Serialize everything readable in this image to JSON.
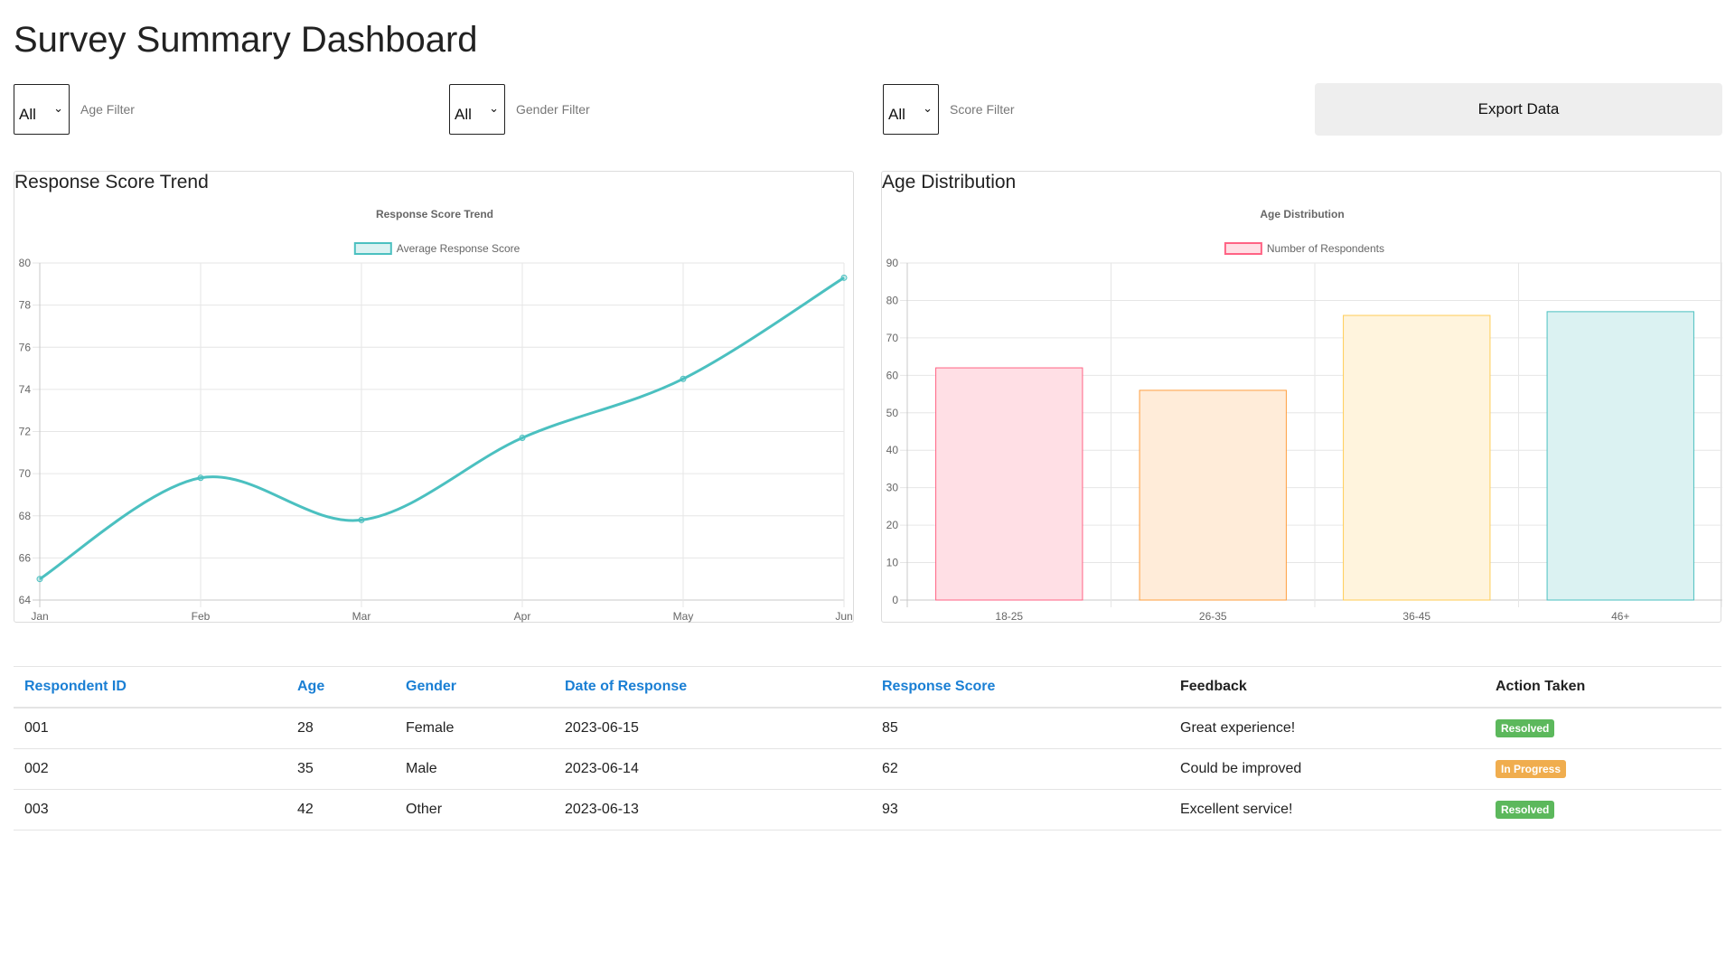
{
  "page": {
    "title": "Survey Summary Dashboard"
  },
  "filters": {
    "age": {
      "value": "All",
      "label": "Age Filter"
    },
    "gender": {
      "value": "All",
      "label": "Gender Filter"
    },
    "score": {
      "value": "All",
      "label": "Score Filter"
    },
    "export_label": "Export Data"
  },
  "charts": {
    "trend": {
      "heading": "Response Score Trend"
    },
    "age": {
      "heading": "Age Distribution"
    }
  },
  "chart_data": [
    {
      "type": "line",
      "title": "Response Score Trend",
      "categories": [
        "Jan",
        "Feb",
        "Mar",
        "Apr",
        "May",
        "Jun"
      ],
      "series": [
        {
          "name": "Average Response Score",
          "values": [
            65,
            69.8,
            67.8,
            71.7,
            74.5,
            79.3
          ],
          "color": "#4bc0c0"
        }
      ],
      "ylim": [
        64,
        80
      ],
      "yticks": [
        64,
        66,
        68,
        70,
        72,
        74,
        76,
        78,
        80
      ],
      "grid": true,
      "legend": "top"
    },
    {
      "type": "bar",
      "title": "Age Distribution",
      "categories": [
        "18-25",
        "26-35",
        "36-45",
        "46+"
      ],
      "series": [
        {
          "name": "Number of Respondents",
          "values": [
            62,
            56,
            76,
            77
          ]
        }
      ],
      "bar_fills": [
        "#ffdfe5",
        "#ffecd9",
        "#fff4dd",
        "#dbf2f2"
      ],
      "bar_strokes": [
        "#ff6384",
        "#ff9f40",
        "#ffcd56",
        "#4bc0c0"
      ],
      "ylim": [
        0,
        90
      ],
      "yticks": [
        0,
        10,
        20,
        30,
        40,
        50,
        60,
        70,
        80,
        90
      ],
      "grid": true,
      "legend": "top"
    }
  ],
  "table": {
    "columns": [
      {
        "label": "Respondent ID",
        "sortable": true
      },
      {
        "label": "Age",
        "sortable": true
      },
      {
        "label": "Gender",
        "sortable": true
      },
      {
        "label": "Date of Response",
        "sortable": true
      },
      {
        "label": "Response Score",
        "sortable": true
      },
      {
        "label": "Feedback",
        "sortable": false
      },
      {
        "label": "Action Taken",
        "sortable": false
      }
    ],
    "rows": [
      {
        "id": "001",
        "age": "28",
        "gender": "Female",
        "date": "2023-06-15",
        "score": "85",
        "feedback": "Great experience!",
        "action": "Resolved",
        "action_color": "#5cb85c"
      },
      {
        "id": "002",
        "age": "35",
        "gender": "Male",
        "date": "2023-06-14",
        "score": "62",
        "feedback": "Could be improved",
        "action": "In Progress",
        "action_color": "#f0ad4e"
      },
      {
        "id": "003",
        "age": "42",
        "gender": "Other",
        "date": "2023-06-13",
        "score": "93",
        "feedback": "Excellent service!",
        "action": "Resolved",
        "action_color": "#5cb85c"
      }
    ]
  },
  "colors": {
    "link": "#1a7fd4",
    "line": "#4bc0c0",
    "resolved": "#5cb85c",
    "in_progress": "#f0ad4e"
  }
}
